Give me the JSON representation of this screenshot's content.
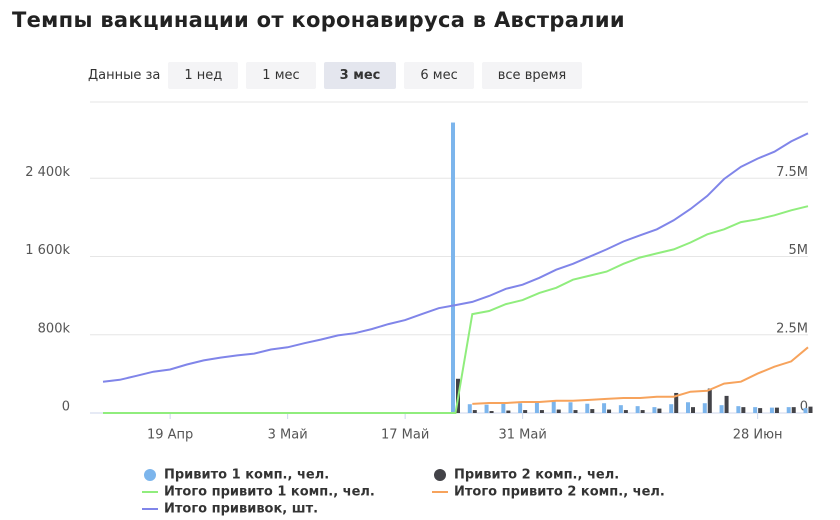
{
  "controls": {
    "label": "Данные за",
    "buttons": [
      "1 нед",
      "1 мес",
      "3 мес",
      "6 мес",
      "все время"
    ],
    "active": 2
  },
  "chart_data": {
    "type": "combo",
    "title": "Темпы вакцинации от коронавируса в Австралии",
    "categories": [
      null,
      null,
      null,
      null,
      "19 Апр",
      null,
      null,
      null,
      null,
      null,
      null,
      "3 Май",
      null,
      null,
      null,
      null,
      null,
      null,
      "17 Май",
      null,
      null,
      null,
      null,
      null,
      null,
      "31 Май",
      null,
      null,
      null,
      null,
      null,
      null,
      null,
      null,
      null,
      null,
      null,
      null,
      null,
      "28 Июн",
      null,
      null,
      null
    ],
    "ylim": [
      0,
      3180000
    ],
    "yticks": [
      0,
      {
        "value": 800000,
        "label": "800k"
      },
      {
        "value": 1600000,
        "label": "1 600k"
      },
      {
        "value": 2400000,
        "label": "2 400k"
      }
    ],
    "y2lim": [
      0,
      9940000
    ],
    "y2ticks": [
      0,
      {
        "value": 2500000,
        "label": "2.5M"
      },
      {
        "value": 5000000,
        "label": "5M"
      },
      {
        "value": 7500000,
        "label": "7.5M"
      }
    ],
    "grid": true,
    "series": [
      {
        "name": "Привито 1 комп., чел.",
        "color": "#7cb5ec",
        "kind": "bar",
        "values": [
          null,
          null,
          null,
          null,
          null,
          null,
          null,
          null,
          null,
          null,
          null,
          null,
          null,
          null,
          null,
          null,
          null,
          null,
          null,
          null,
          null,
          2970000,
          90000,
          85000,
          95000,
          100000,
          110000,
          120000,
          110000,
          95000,
          100000,
          80000,
          70000,
          60000,
          90000,
          110000,
          100000,
          80000,
          70000,
          60000,
          55000,
          60000,
          50000
        ]
      },
      {
        "name": "Привито 2 комп., чел.",
        "color": "#434348",
        "kind": "bar",
        "values": [
          null,
          null,
          null,
          null,
          null,
          null,
          null,
          null,
          null,
          null,
          null,
          null,
          null,
          null,
          null,
          null,
          null,
          null,
          null,
          null,
          null,
          350000,
          30000,
          20000,
          25000,
          30000,
          30000,
          35000,
          30000,
          40000,
          35000,
          30000,
          30000,
          45000,
          205000,
          60000,
          250000,
          175000,
          60000,
          50000,
          55000,
          60000,
          65000
        ]
      },
      {
        "name": "Итого привито 1 комп., чел.",
        "color": "#90ed7d",
        "kind": "line",
        "axis": "y2",
        "values": [
          0,
          0,
          0,
          0,
          0,
          0,
          0,
          0,
          0,
          0,
          0,
          0,
          0,
          0,
          0,
          0,
          0,
          0,
          0,
          0,
          0,
          0,
          3160000,
          3260000,
          3480000,
          3610000,
          3840000,
          4000000,
          4260000,
          4390000,
          4520000,
          4770000,
          4970000,
          5100000,
          5230000,
          5450000,
          5710000,
          5870000,
          6100000,
          6190000,
          6320000,
          6480000,
          6610000
        ]
      },
      {
        "name": "Итого привито 2 комп., чел.",
        "color": "#f7a35c",
        "kind": "line",
        "axis": "y2",
        "values": [
          null,
          null,
          null,
          null,
          null,
          null,
          null,
          null,
          null,
          null,
          null,
          null,
          null,
          null,
          null,
          null,
          null,
          null,
          null,
          null,
          null,
          null,
          290000,
          320000,
          320000,
          350000,
          350000,
          390000,
          390000,
          420000,
          450000,
          480000,
          480000,
          520000,
          520000,
          680000,
          710000,
          940000,
          1000000,
          1260000,
          1480000,
          1650000,
          2100000
        ]
      },
      {
        "name": "Итого прививок, шт.",
        "color": "#8085e9",
        "kind": "line",
        "axis": "y2",
        "values": [
          1000000,
          1060000,
          1190000,
          1320000,
          1390000,
          1550000,
          1680000,
          1770000,
          1840000,
          1900000,
          2030000,
          2100000,
          2230000,
          2350000,
          2480000,
          2550000,
          2680000,
          2840000,
          2970000,
          3160000,
          3350000,
          3450000,
          3550000,
          3740000,
          3970000,
          4100000,
          4320000,
          4580000,
          4770000,
          5000000,
          5230000,
          5480000,
          5680000,
          5870000,
          6160000,
          6520000,
          6940000,
          7480000,
          7870000,
          8130000,
          8350000,
          8680000,
          8940000
        ]
      }
    ]
  }
}
